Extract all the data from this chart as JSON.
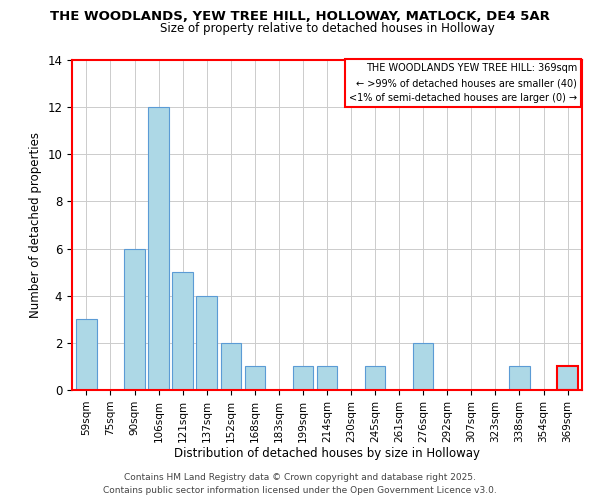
{
  "title": "THE WOODLANDS, YEW TREE HILL, HOLLOWAY, MATLOCK, DE4 5AR",
  "subtitle": "Size of property relative to detached houses in Holloway",
  "xlabel": "Distribution of detached houses by size in Holloway",
  "ylabel": "Number of detached properties",
  "categories": [
    "59sqm",
    "75sqm",
    "90sqm",
    "106sqm",
    "121sqm",
    "137sqm",
    "152sqm",
    "168sqm",
    "183sqm",
    "199sqm",
    "214sqm",
    "230sqm",
    "245sqm",
    "261sqm",
    "276sqm",
    "292sqm",
    "307sqm",
    "323sqm",
    "338sqm",
    "354sqm",
    "369sqm"
  ],
  "values": [
    3,
    0,
    6,
    12,
    5,
    4,
    2,
    1,
    0,
    1,
    1,
    0,
    1,
    0,
    2,
    0,
    0,
    0,
    1,
    0,
    1
  ],
  "bar_color": "#add8e6",
  "bar_edge_color": "#5b9bd5",
  "highlight_bar_index": 20,
  "highlight_bar_color": "#add8e6",
  "highlight_bar_edge_color": "#ff0000",
  "ylim": [
    0,
    14
  ],
  "yticks": [
    0,
    2,
    4,
    6,
    8,
    10,
    12,
    14
  ],
  "legend_title_line1": "THE WOODLANDS YEW TREE HILL: 369sqm",
  "legend_line2": "← >99% of detached houses are smaller (40)",
  "legend_line3": "<1% of semi-detached houses are larger (0) →",
  "legend_box_edge_color": "#ff0000",
  "footer_line1": "Contains HM Land Registry data © Crown copyright and database right 2025.",
  "footer_line2": "Contains public sector information licensed under the Open Government Licence v3.0.",
  "background_color": "#ffffff",
  "grid_color": "#cccccc",
  "spine_color": "#ff0000"
}
